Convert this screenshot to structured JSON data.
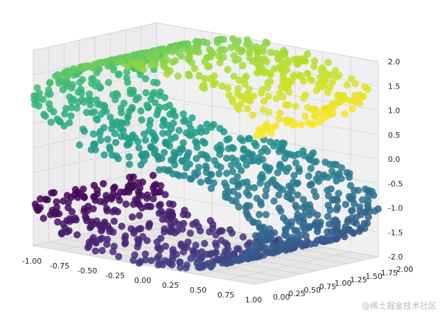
{
  "chart_data": {
    "type": "scatter",
    "title": "",
    "xlabel": "",
    "ylabel": "",
    "zlabel": "",
    "xlim": [
      -1.0,
      1.0
    ],
    "ylim": [
      0.0,
      2.0
    ],
    "zlim": [
      -2.0,
      2.0
    ],
    "x_ticks": [
      "-1.00",
      "-0.75",
      "-0.50",
      "-0.25",
      "0.00",
      "0.25",
      "0.50",
      "0.75",
      "1.00"
    ],
    "y_ticks": [
      "0.00",
      "0.25",
      "0.50",
      "0.75",
      "1.00",
      "1.25",
      "1.50",
      "1.75",
      "2.00"
    ],
    "z_ticks": [
      "-2.0",
      "-1.5",
      "-1.0",
      "-0.5",
      "0.0",
      "0.5",
      "1.0",
      "1.5",
      "2.0"
    ],
    "grid": true,
    "colormap": "viridis",
    "color_range": [
      "#440154",
      "#fde725"
    ],
    "shape": "S-curve point cloud",
    "t_range": [
      -4.71,
      4.71
    ],
    "points_shown": 1500,
    "description_of_data": "points (x, y, z) with x = sin(t), y in [0, 2], z = sign(t)*(cos(t)-1), colored by t"
  },
  "watermark": "@稀土掘金技术社区"
}
